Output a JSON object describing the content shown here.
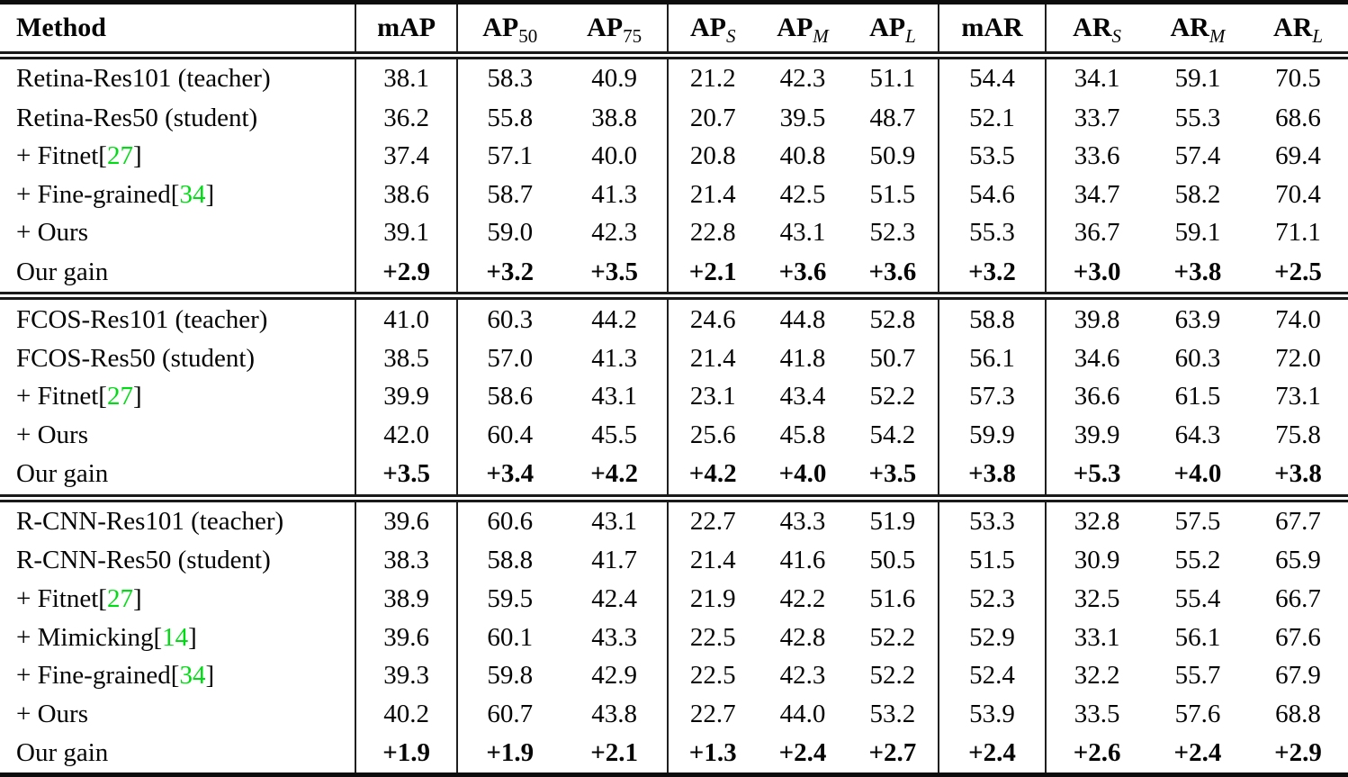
{
  "page": {
    "background": "#ffffff",
    "text_color": "#050505",
    "citation_color": "#00dc14"
  },
  "table": {
    "columns": [
      {
        "label": "Method",
        "sub": "",
        "italic_sub": false
      },
      {
        "label": "mAP",
        "sub": "",
        "italic_sub": false
      },
      {
        "label": "AP",
        "sub": "50",
        "italic_sub": false
      },
      {
        "label": "AP",
        "sub": "75",
        "italic_sub": false
      },
      {
        "label": "AP",
        "sub": "S",
        "italic_sub": true
      },
      {
        "label": "AP",
        "sub": "M",
        "italic_sub": true
      },
      {
        "label": "AP",
        "sub": "L",
        "italic_sub": true
      },
      {
        "label": "mAR",
        "sub": "",
        "italic_sub": false
      },
      {
        "label": "AR",
        "sub": "S",
        "italic_sub": true
      },
      {
        "label": "AR",
        "sub": "M",
        "italic_sub": true
      },
      {
        "label": "AR",
        "sub": "L",
        "italic_sub": true
      }
    ],
    "separators_after_columns": [
      "Method",
      "mAP",
      "AP75",
      "APL",
      "mAR"
    ],
    "sections": [
      {
        "rows": [
          {
            "method": {
              "label": "Retina-Res101 (teacher)",
              "cite": null
            },
            "bold_values": false,
            "values": [
              "38.1",
              "58.3",
              "40.9",
              "21.2",
              "42.3",
              "51.1",
              "54.4",
              "34.1",
              "59.1",
              "70.5"
            ]
          },
          {
            "method": {
              "label": "Retina-Res50 (student)",
              "cite": null
            },
            "bold_values": false,
            "values": [
              "36.2",
              "55.8",
              "38.8",
              "20.7",
              "39.5",
              "48.7",
              "52.1",
              "33.7",
              "55.3",
              "68.6"
            ]
          },
          {
            "method": {
              "label": "+ Fitnet",
              "cite": "27"
            },
            "bold_values": false,
            "values": [
              "37.4",
              "57.1",
              "40.0",
              "20.8",
              "40.8",
              "50.9",
              "53.5",
              "33.6",
              "57.4",
              "69.4"
            ]
          },
          {
            "method": {
              "label": "+ Fine-grained",
              "cite": "34"
            },
            "bold_values": false,
            "values": [
              "38.6",
              "58.7",
              "41.3",
              "21.4",
              "42.5",
              "51.5",
              "54.6",
              "34.7",
              "58.2",
              "70.4"
            ]
          },
          {
            "method": {
              "label": "+ Ours",
              "cite": null
            },
            "bold_values": false,
            "values": [
              "39.1",
              "59.0",
              "42.3",
              "22.8",
              "43.1",
              "52.3",
              "55.3",
              "36.7",
              "59.1",
              "71.1"
            ]
          },
          {
            "method": {
              "label": "Our gain",
              "cite": null
            },
            "bold_values": true,
            "values": [
              "+2.9",
              "+3.2",
              "+3.5",
              "+2.1",
              "+3.6",
              "+3.6",
              "+3.2",
              "+3.0",
              "+3.8",
              "+2.5"
            ]
          }
        ]
      },
      {
        "rows": [
          {
            "method": {
              "label": "FCOS-Res101 (teacher)",
              "cite": null
            },
            "bold_values": false,
            "values": [
              "41.0",
              "60.3",
              "44.2",
              "24.6",
              "44.8",
              "52.8",
              "58.8",
              "39.8",
              "63.9",
              "74.0"
            ]
          },
          {
            "method": {
              "label": "FCOS-Res50 (student)",
              "cite": null
            },
            "bold_values": false,
            "values": [
              "38.5",
              "57.0",
              "41.3",
              "21.4",
              "41.8",
              "50.7",
              "56.1",
              "34.6",
              "60.3",
              "72.0"
            ]
          },
          {
            "method": {
              "label": "+ Fitnet",
              "cite": "27"
            },
            "bold_values": false,
            "values": [
              "39.9",
              "58.6",
              "43.1",
              "23.1",
              "43.4",
              "52.2",
              "57.3",
              "36.6",
              "61.5",
              "73.1"
            ]
          },
          {
            "method": {
              "label": "+ Ours",
              "cite": null
            },
            "bold_values": false,
            "values": [
              "42.0",
              "60.4",
              "45.5",
              "25.6",
              "45.8",
              "54.2",
              "59.9",
              "39.9",
              "64.3",
              "75.8"
            ]
          },
          {
            "method": {
              "label": "Our gain",
              "cite": null
            },
            "bold_values": true,
            "values": [
              "+3.5",
              "+3.4",
              "+4.2",
              "+4.2",
              "+4.0",
              "+3.5",
              "+3.8",
              "+5.3",
              "+4.0",
              "+3.8"
            ]
          }
        ]
      },
      {
        "rows": [
          {
            "method": {
              "label": "R-CNN-Res101 (teacher)",
              "cite": null
            },
            "bold_values": false,
            "values": [
              "39.6",
              "60.6",
              "43.1",
              "22.7",
              "43.3",
              "51.9",
              "53.3",
              "32.8",
              "57.5",
              "67.7"
            ]
          },
          {
            "method": {
              "label": "R-CNN-Res50 (student)",
              "cite": null
            },
            "bold_values": false,
            "values": [
              "38.3",
              "58.8",
              "41.7",
              "21.4",
              "41.6",
              "50.5",
              "51.5",
              "30.9",
              "55.2",
              "65.9"
            ]
          },
          {
            "method": {
              "label": "+ Fitnet",
              "cite": "27"
            },
            "bold_values": false,
            "values": [
              "38.9",
              "59.5",
              "42.4",
              "21.9",
              "42.2",
              "51.6",
              "52.3",
              "32.5",
              "55.4",
              "66.7"
            ]
          },
          {
            "method": {
              "label": "+ Mimicking",
              "cite": "14"
            },
            "bold_values": false,
            "values": [
              "39.6",
              "60.1",
              "43.3",
              "22.5",
              "42.8",
              "52.2",
              "52.9",
              "33.1",
              "56.1",
              "67.6"
            ]
          },
          {
            "method": {
              "label": "+ Fine-grained",
              "cite": "34"
            },
            "bold_values": false,
            "values": [
              "39.3",
              "59.8",
              "42.9",
              "22.5",
              "42.3",
              "52.2",
              "52.4",
              "32.2",
              "55.7",
              "67.9"
            ]
          },
          {
            "method": {
              "label": "+ Ours",
              "cite": null
            },
            "bold_values": false,
            "values": [
              "40.2",
              "60.7",
              "43.8",
              "22.7",
              "44.0",
              "53.2",
              "53.9",
              "33.5",
              "57.6",
              "68.8"
            ]
          },
          {
            "method": {
              "label": "Our gain",
              "cite": null
            },
            "bold_values": true,
            "values": [
              "+1.9",
              "+1.9",
              "+2.1",
              "+1.3",
              "+2.4",
              "+2.7",
              "+2.4",
              "+2.6",
              "+2.4",
              "+2.9"
            ]
          }
        ]
      }
    ]
  }
}
